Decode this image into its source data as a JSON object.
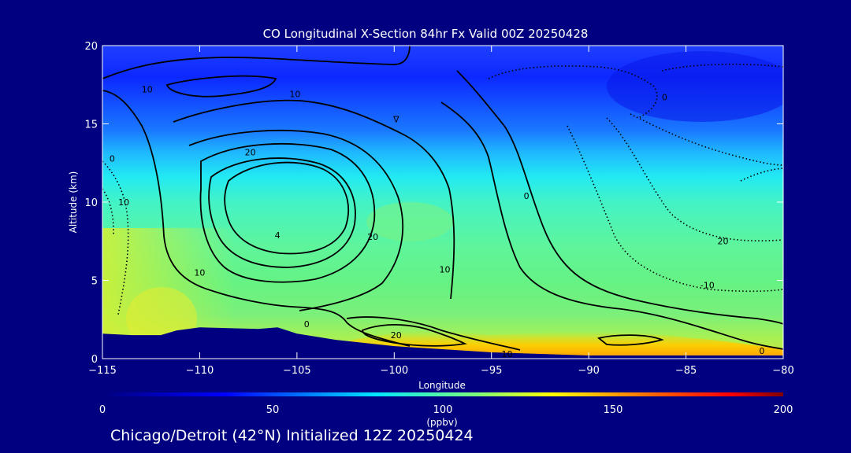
{
  "chart_data": {
    "type": "heatmap",
    "title": "CO Longitudinal X-Section 84hr  Fx Valid 00Z 20250428",
    "xlabel": "Longitude",
    "ylabel": "Altitude (km)",
    "xlim": [
      -115,
      -80
    ],
    "ylim": [
      0,
      20
    ],
    "xticks": [
      -115,
      -110,
      -105,
      -100,
      -95,
      -90,
      -85,
      -80
    ],
    "xtick_labels": [
      "−115",
      "−110",
      "−105",
      "−100",
      "−95",
      "−90",
      "−85",
      "−80"
    ],
    "yticks": [
      0,
      5,
      10,
      15,
      20
    ],
    "ytick_labels": [
      "0",
      "5",
      "10",
      "15",
      "20"
    ],
    "colorbar": {
      "label": "(ppbv)",
      "range": [
        0,
        200
      ],
      "ticks": [
        0,
        50,
        100,
        150,
        200
      ],
      "tick_labels": [
        "0",
        "50",
        "100",
        "150",
        "200"
      ],
      "colors": [
        "#000080",
        "#0000ff",
        "#00ffff",
        "#ffff00",
        "#ff0000",
        "#800000"
      ]
    },
    "terrain_km": [
      [
        -115,
        1.6
      ],
      [
        -113.5,
        1.5
      ],
      [
        -112,
        1.5
      ],
      [
        -111.2,
        1.8
      ],
      [
        -110,
        2.0
      ],
      [
        -107,
        1.9
      ],
      [
        -106,
        2.0
      ],
      [
        -105,
        1.6
      ],
      [
        -103,
        1.2
      ],
      [
        -100,
        0.8
      ],
      [
        -95,
        0.4
      ],
      [
        -90,
        0.2
      ],
      [
        -85,
        0.2
      ],
      [
        -80,
        0.2
      ]
    ],
    "contour_labels": [
      {
        "text": "10",
        "lon": -112.7,
        "alt": 17.0
      },
      {
        "text": "10",
        "lon": -105.1,
        "alt": 16.7
      },
      {
        "text": "20",
        "lon": -107.4,
        "alt": 13.0
      },
      {
        "text": "0",
        "lon": -114.5,
        "alt": 12.6
      },
      {
        "text": "10",
        "lon": -113.9,
        "alt": 9.8
      },
      {
        "text": "4",
        "lon": -106.0,
        "alt": 7.7
      },
      {
        "text": "20",
        "lon": -101.1,
        "alt": 7.6
      },
      {
        "text": "10",
        "lon": -110.0,
        "alt": 5.3
      },
      {
        "text": "10",
        "lon": -97.4,
        "alt": 5.5
      },
      {
        "text": "0",
        "lon": -104.5,
        "alt": 2.0
      },
      {
        "text": "20",
        "lon": -99.9,
        "alt": 1.3
      },
      {
        "text": "10",
        "lon": -94.2,
        "alt": 0.1
      },
      {
        "text": "0",
        "lon": -93.2,
        "alt": 10.2
      },
      {
        "text": "20",
        "lon": -83.1,
        "alt": 7.3
      },
      {
        "text": "-10",
        "lon": -83.9,
        "alt": 4.5
      },
      {
        "text": "0",
        "lon": -81.1,
        "alt": 0.3
      },
      {
        "text": "0",
        "lon": -86.1,
        "alt": 16.5
      },
      {
        "text": "∇",
        "lon": -99.9,
        "alt": 15.1
      }
    ]
  },
  "footer": "Chicago/Detroit (42°N) Initialized 12Z 20250424"
}
